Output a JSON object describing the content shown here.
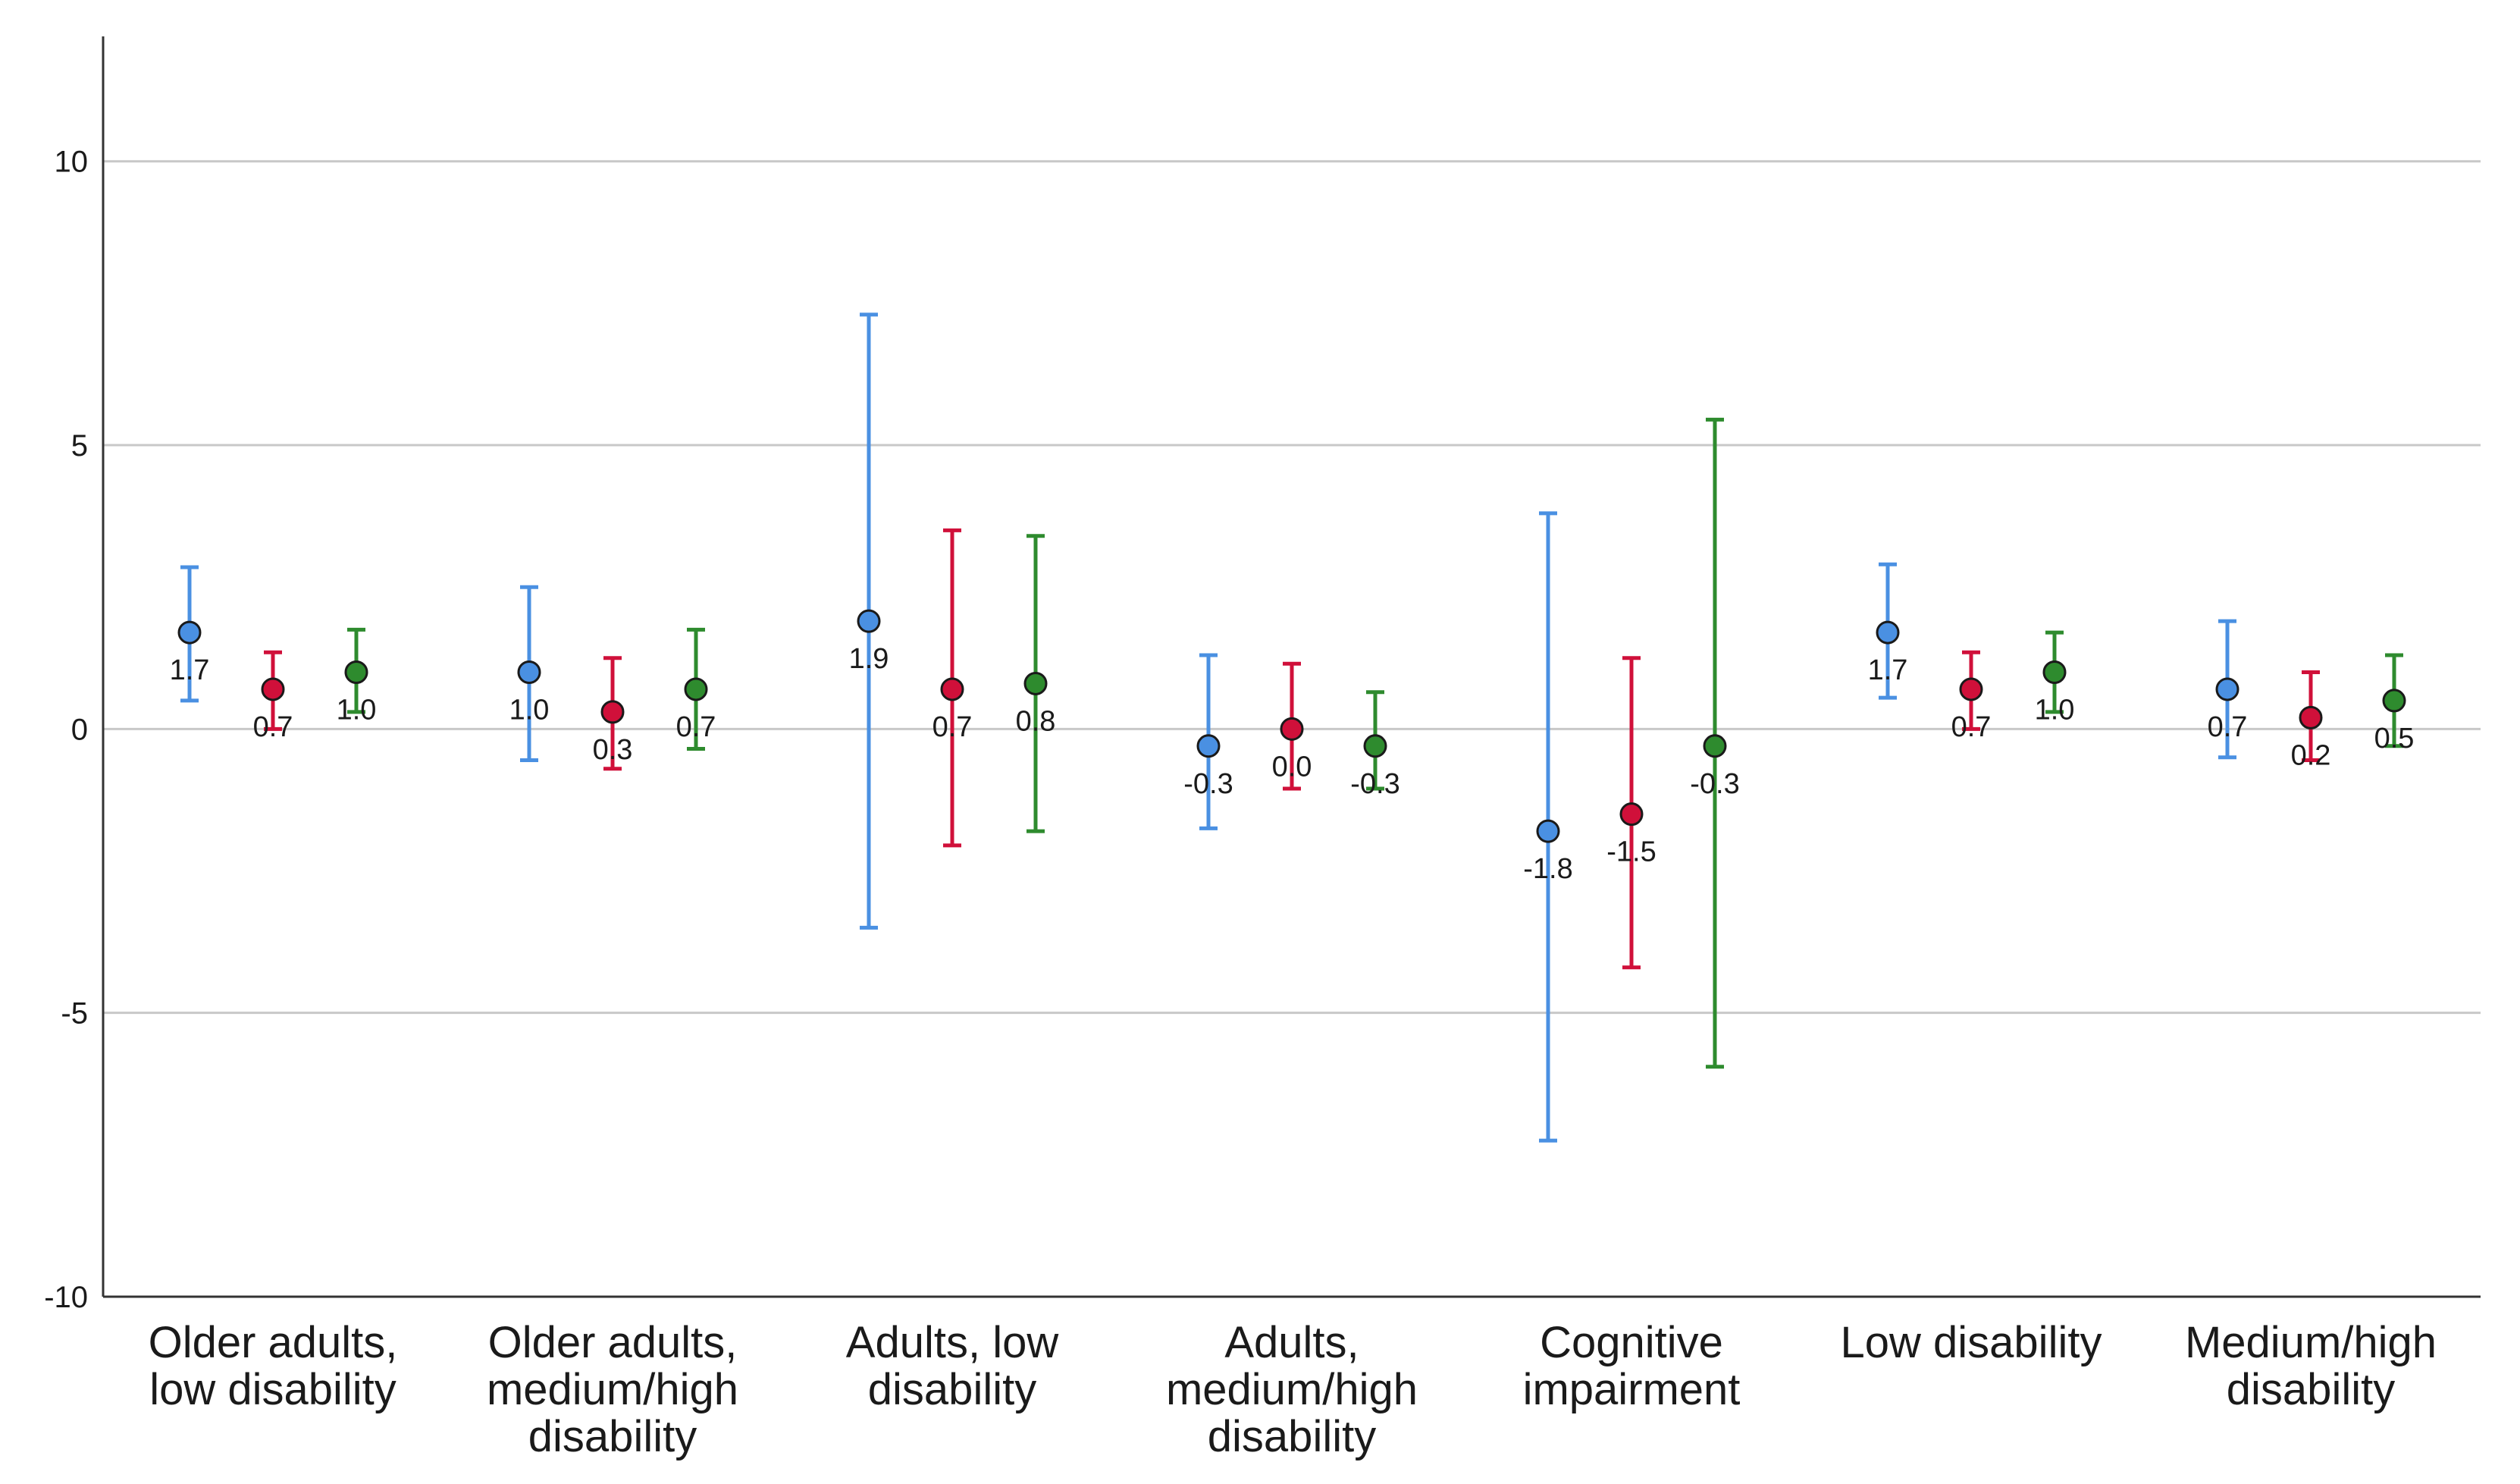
{
  "chart_data": {
    "type": "errorbar",
    "title": "",
    "xlabel": "",
    "ylabel": "",
    "ylim": [
      -10,
      12.2
    ],
    "yticks": [
      "10",
      "5",
      "0",
      "-5",
      "-10"
    ],
    "categories": [
      [
        "Older adults,",
        "low disability"
      ],
      [
        "Older adults,",
        "medium/high",
        "disability"
      ],
      [
        "Adults, low",
        "disability"
      ],
      [
        "Adults,",
        "medium/high",
        "disability"
      ],
      [
        "Cognitive",
        "impairment"
      ],
      [
        "Low disability"
      ],
      [
        "Medium/high",
        "disability"
      ]
    ],
    "series": [
      {
        "color": "#4A90E2",
        "mean": [
          1.7,
          1.0,
          1.9,
          -0.3,
          -1.8,
          1.7,
          0.7
        ],
        "lower": [
          0.5,
          -0.55,
          -3.5,
          -1.75,
          -7.25,
          0.55,
          -0.5
        ],
        "upper": [
          2.85,
          2.5,
          7.3,
          1.3,
          3.8,
          2.9,
          1.9
        ],
        "labels": [
          "1.7",
          "1.0",
          "1.9",
          "-0.3",
          "-1.8",
          "1.7",
          "0.7"
        ]
      },
      {
        "color": "#D0103A",
        "mean": [
          0.7,
          0.3,
          0.7,
          0.0,
          -1.5,
          0.7,
          0.2
        ],
        "lower": [
          0.0,
          -0.7,
          -2.05,
          -1.05,
          -4.2,
          0.0,
          -0.55
        ],
        "upper": [
          1.35,
          1.25,
          3.5,
          1.15,
          1.25,
          1.35,
          1.0
        ],
        "labels": [
          "0.7",
          "0.3",
          "0.7",
          "0.0",
          "-1.5",
          "0.7",
          "0.2"
        ]
      },
      {
        "color": "#2E8B2E",
        "mean": [
          1.0,
          0.7,
          0.8,
          -0.3,
          -0.3,
          1.0,
          0.5
        ],
        "lower": [
          0.3,
          -0.35,
          -1.8,
          -1.05,
          -5.95,
          0.3,
          -0.3
        ],
        "upper": [
          1.75,
          1.75,
          3.4,
          0.65,
          5.45,
          1.7,
          1.3
        ],
        "labels": [
          "1.0",
          "0.7",
          "0.8",
          "-0.3",
          "-0.3",
          "1.0",
          "0.5"
        ]
      }
    ]
  }
}
